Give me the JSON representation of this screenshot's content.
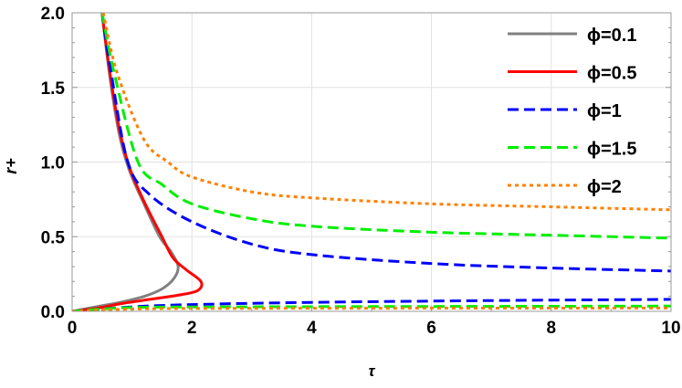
{
  "chart_data": {
    "type": "line",
    "xlabel": "τ",
    "ylabel": "r+",
    "xlim": [
      0,
      10
    ],
    "ylim": [
      0,
      2.0
    ],
    "xticks": [
      "0",
      "2",
      "4",
      "6",
      "8",
      "10"
    ],
    "yticks": [
      "0.0",
      "0.5",
      "1.0",
      "1.5",
      "2.0"
    ],
    "grid": true,
    "legend_position": "top-right",
    "series": [
      {
        "name": "ϕ=0.1",
        "color": "#808080",
        "style": "solid",
        "points": [
          [
            0.5,
            2.0
          ],
          [
            0.62,
            1.6
          ],
          [
            0.78,
            1.2
          ],
          [
            0.95,
            0.95
          ],
          [
            1.2,
            0.72
          ],
          [
            1.46,
            0.5
          ],
          [
            1.65,
            0.4
          ],
          [
            1.77,
            0.3
          ],
          [
            1.7,
            0.22
          ],
          [
            1.5,
            0.15
          ],
          [
            1.2,
            0.1
          ],
          [
            0.8,
            0.06
          ],
          [
            0.4,
            0.03
          ],
          [
            0,
            0
          ]
        ]
      },
      {
        "name": "ϕ=0.5",
        "color": "#ff0000",
        "style": "solid",
        "points": [
          [
            0.5,
            2.0
          ],
          [
            0.63,
            1.6
          ],
          [
            0.8,
            1.2
          ],
          [
            0.97,
            0.95
          ],
          [
            1.22,
            0.72
          ],
          [
            1.5,
            0.5
          ],
          [
            1.68,
            0.36
          ],
          [
            1.9,
            0.28
          ],
          [
            2.15,
            0.2
          ],
          [
            2.1,
            0.14
          ],
          [
            1.8,
            0.11
          ],
          [
            1.3,
            0.08
          ],
          [
            0.8,
            0.05
          ],
          [
            0.4,
            0.02
          ],
          [
            0,
            0
          ]
        ]
      },
      {
        "name": "ϕ=1",
        "color": "#0000ff",
        "style": "dashed",
        "points": [
          [
            0.5,
            2.0
          ],
          [
            0.65,
            1.6
          ],
          [
            0.93,
            1.0
          ],
          [
            1.3,
            0.78
          ],
          [
            2,
            0.6
          ],
          [
            3,
            0.45
          ],
          [
            4,
            0.38
          ],
          [
            6,
            0.32
          ],
          [
            8,
            0.29
          ],
          [
            10,
            0.27
          ]
        ]
      },
      {
        "name": "ϕ=1",
        "color": "#0000ff",
        "style": "dashed",
        "points": [
          [
            0,
            0
          ],
          [
            1,
            0.03
          ],
          [
            2,
            0.045
          ],
          [
            4,
            0.06
          ],
          [
            7,
            0.072
          ],
          [
            10,
            0.08
          ]
        ]
      },
      {
        "name": "ϕ=1.5",
        "color": "#00ee00",
        "style": "dashed",
        "points": [
          [
            0.5,
            2.0
          ],
          [
            0.7,
            1.6
          ],
          [
            1.1,
            1.0
          ],
          [
            1.5,
            0.85
          ],
          [
            2,
            0.72
          ],
          [
            3,
            0.62
          ],
          [
            4,
            0.57
          ],
          [
            6,
            0.53
          ],
          [
            8,
            0.51
          ],
          [
            10,
            0.49
          ]
        ]
      },
      {
        "name": "ϕ=1.5",
        "color": "#00ee00",
        "style": "dashed",
        "points": [
          [
            0,
            0
          ],
          [
            1,
            0.025
          ],
          [
            3,
            0.03
          ],
          [
            10,
            0.035
          ]
        ]
      },
      {
        "name": "ϕ=2",
        "color": "#ff8000",
        "style": "dotted",
        "points": [
          [
            0.52,
            2.0
          ],
          [
            0.75,
            1.6
          ],
          [
            1.2,
            1.15
          ],
          [
            1.6,
            1.0
          ],
          [
            2,
            0.9
          ],
          [
            3,
            0.8
          ],
          [
            4,
            0.76
          ],
          [
            6,
            0.72
          ],
          [
            8,
            0.7
          ],
          [
            10,
            0.68
          ]
        ]
      },
      {
        "name": "ϕ=2",
        "color": "#ff8000",
        "style": "dotted",
        "points": [
          [
            0,
            0
          ],
          [
            1,
            0.015
          ],
          [
            3,
            0.02
          ],
          [
            10,
            0.022
          ]
        ]
      }
    ],
    "legend": [
      {
        "label": "ϕ=0.1",
        "color": "#808080",
        "style": "solid"
      },
      {
        "label": "ϕ=0.5",
        "color": "#ff0000",
        "style": "solid"
      },
      {
        "label": "ϕ=1",
        "color": "#0000ff",
        "style": "dashed"
      },
      {
        "label": "ϕ=1.5",
        "color": "#00ee00",
        "style": "dashed"
      },
      {
        "label": "ϕ=2",
        "color": "#ff8000",
        "style": "dotted"
      }
    ]
  }
}
